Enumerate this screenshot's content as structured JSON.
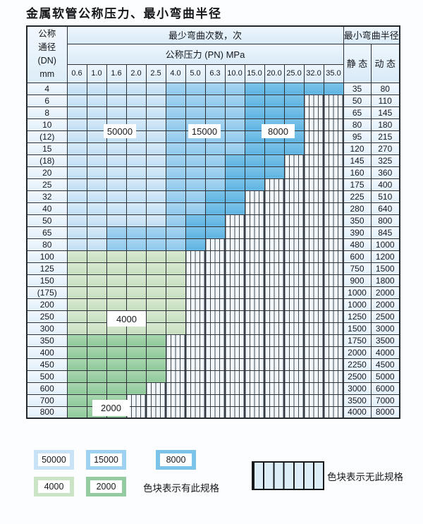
{
  "title": "金属软管公称压力、最小弯曲半径",
  "table": {
    "header": {
      "dn_lines": [
        "公称",
        "通径",
        "(DN)",
        "mm"
      ],
      "bend_times_label": "最少弯曲次数，次",
      "pressure_label": "公称压力 (PN) MPa",
      "pressures": [
        "0.6",
        "1.0",
        "1.6",
        "2.0",
        "2.5",
        "4.0",
        "5.0",
        "6.3",
        "10.0",
        "15.0",
        "20.0",
        "25.0",
        "32.0",
        "35.0"
      ],
      "radius_label": "最小弯曲半径",
      "static_label": "静 态",
      "dynamic_label": "动 态"
    },
    "cell_legend": {
      "L": "50000",
      "M": "15000",
      "D": "8000",
      "G": "4000",
      "E": "2000",
      "H": "no-spec-hatched"
    },
    "rows": [
      {
        "dn": "4",
        "static": "35",
        "dynamic": "80",
        "cells": "LLLLLMMMMDDDDD"
      },
      {
        "dn": "6",
        "static": "50",
        "dynamic": "110",
        "cells": "LLLLLMMMMDDDHH"
      },
      {
        "dn": "8",
        "static": "65",
        "dynamic": "145",
        "cells": "LLLLLMMMMDDDHH"
      },
      {
        "dn": "10",
        "static": "80",
        "dynamic": "180",
        "cells": "LLLLLMMMMDDDHH"
      },
      {
        "dn": "(12)",
        "static": "95",
        "dynamic": "215",
        "cells": "LLLLLMMMMDDDHH"
      },
      {
        "dn": "15",
        "static": "120",
        "dynamic": "270",
        "cells": "LLLLLMMMMDDDHH"
      },
      {
        "dn": "(18)",
        "static": "145",
        "dynamic": "325",
        "cells": "LLLLLMMMDDDHHH"
      },
      {
        "dn": "20",
        "static": "160",
        "dynamic": "360",
        "cells": "LLLLLMMMDDDHHH"
      },
      {
        "dn": "25",
        "static": "175",
        "dynamic": "400",
        "cells": "LLLLLMMMDDHHHH"
      },
      {
        "dn": "32",
        "static": "225",
        "dynamic": "510",
        "cells": "LLLLLMMDDHHHHH"
      },
      {
        "dn": "40",
        "static": "280",
        "dynamic": "640",
        "cells": "LLLLLMMDDHHHHH"
      },
      {
        "dn": "50",
        "static": "350",
        "dynamic": "800",
        "cells": "LLLLLMDDHHHHHH"
      },
      {
        "dn": "65",
        "static": "390",
        "dynamic": "845",
        "cells": "LLMMMMDDHHHHHH"
      },
      {
        "dn": "80",
        "static": "480",
        "dynamic": "1000",
        "cells": "LLMMMMDHHHHHHH"
      },
      {
        "dn": "100",
        "static": "600",
        "dynamic": "1200",
        "cells": "GGGGGGHHHHHHHH"
      },
      {
        "dn": "125",
        "static": "750",
        "dynamic": "1500",
        "cells": "GGGGGGHHHHHHHH"
      },
      {
        "dn": "150",
        "static": "900",
        "dynamic": "1800",
        "cells": "GGGGGGHHHHHHHH"
      },
      {
        "dn": "(175)",
        "static": "1000",
        "dynamic": "2000",
        "cells": "GGGGGGHHHHHHHH"
      },
      {
        "dn": "200",
        "static": "1000",
        "dynamic": "2000",
        "cells": "GGGGGGHHHHHHHH"
      },
      {
        "dn": "250",
        "static": "1250",
        "dynamic": "2500",
        "cells": "GGGGGGHHHHHHHH"
      },
      {
        "dn": "300",
        "static": "1500",
        "dynamic": "3000",
        "cells": "GGGGGGHHHHHHHH"
      },
      {
        "dn": "350",
        "static": "1750",
        "dynamic": "3500",
        "cells": "EEEEEHHHHHHHHH"
      },
      {
        "dn": "400",
        "static": "2000",
        "dynamic": "4000",
        "cells": "EEEEEHHHHHHHHH"
      },
      {
        "dn": "450",
        "static": "2250",
        "dynamic": "4500",
        "cells": "EEEEEHHHHHHHHH"
      },
      {
        "dn": "500",
        "static": "2500",
        "dynamic": "5000",
        "cells": "EEEEEHHHHHHHHH"
      },
      {
        "dn": "600",
        "static": "3000",
        "dynamic": "6000",
        "cells": "EEEEHHHHHHHHHH"
      },
      {
        "dn": "700",
        "static": "3500",
        "dynamic": "7000",
        "cells": "EEEHHHHHHHHHHH"
      },
      {
        "dn": "800",
        "static": "4000",
        "dynamic": "8000",
        "cells": "EEEHHHHHHHHHHH"
      }
    ]
  },
  "overlays": {
    "o50000": "50000",
    "o15000": "15000",
    "o8000": "8000",
    "o4000": "4000",
    "o2000": "2000"
  },
  "legend": {
    "sw50000": "50000",
    "sw15000": "15000",
    "sw8000": "8000",
    "sw4000": "4000",
    "sw2000": "2000",
    "has_text": "色块表示有此规格",
    "none_text": "色块表示无此规格"
  },
  "colors": {
    "light_blue_50000": "#c8e3f6",
    "mid_blue_15000": "#9fd1f0",
    "dark_blue_8000": "#7cc3ea",
    "light_green_4000": "#cce4c6",
    "mid_green_2000": "#94cba0",
    "hatch_bg": "#f0f6fa",
    "grid_border": "#2a3036"
  }
}
